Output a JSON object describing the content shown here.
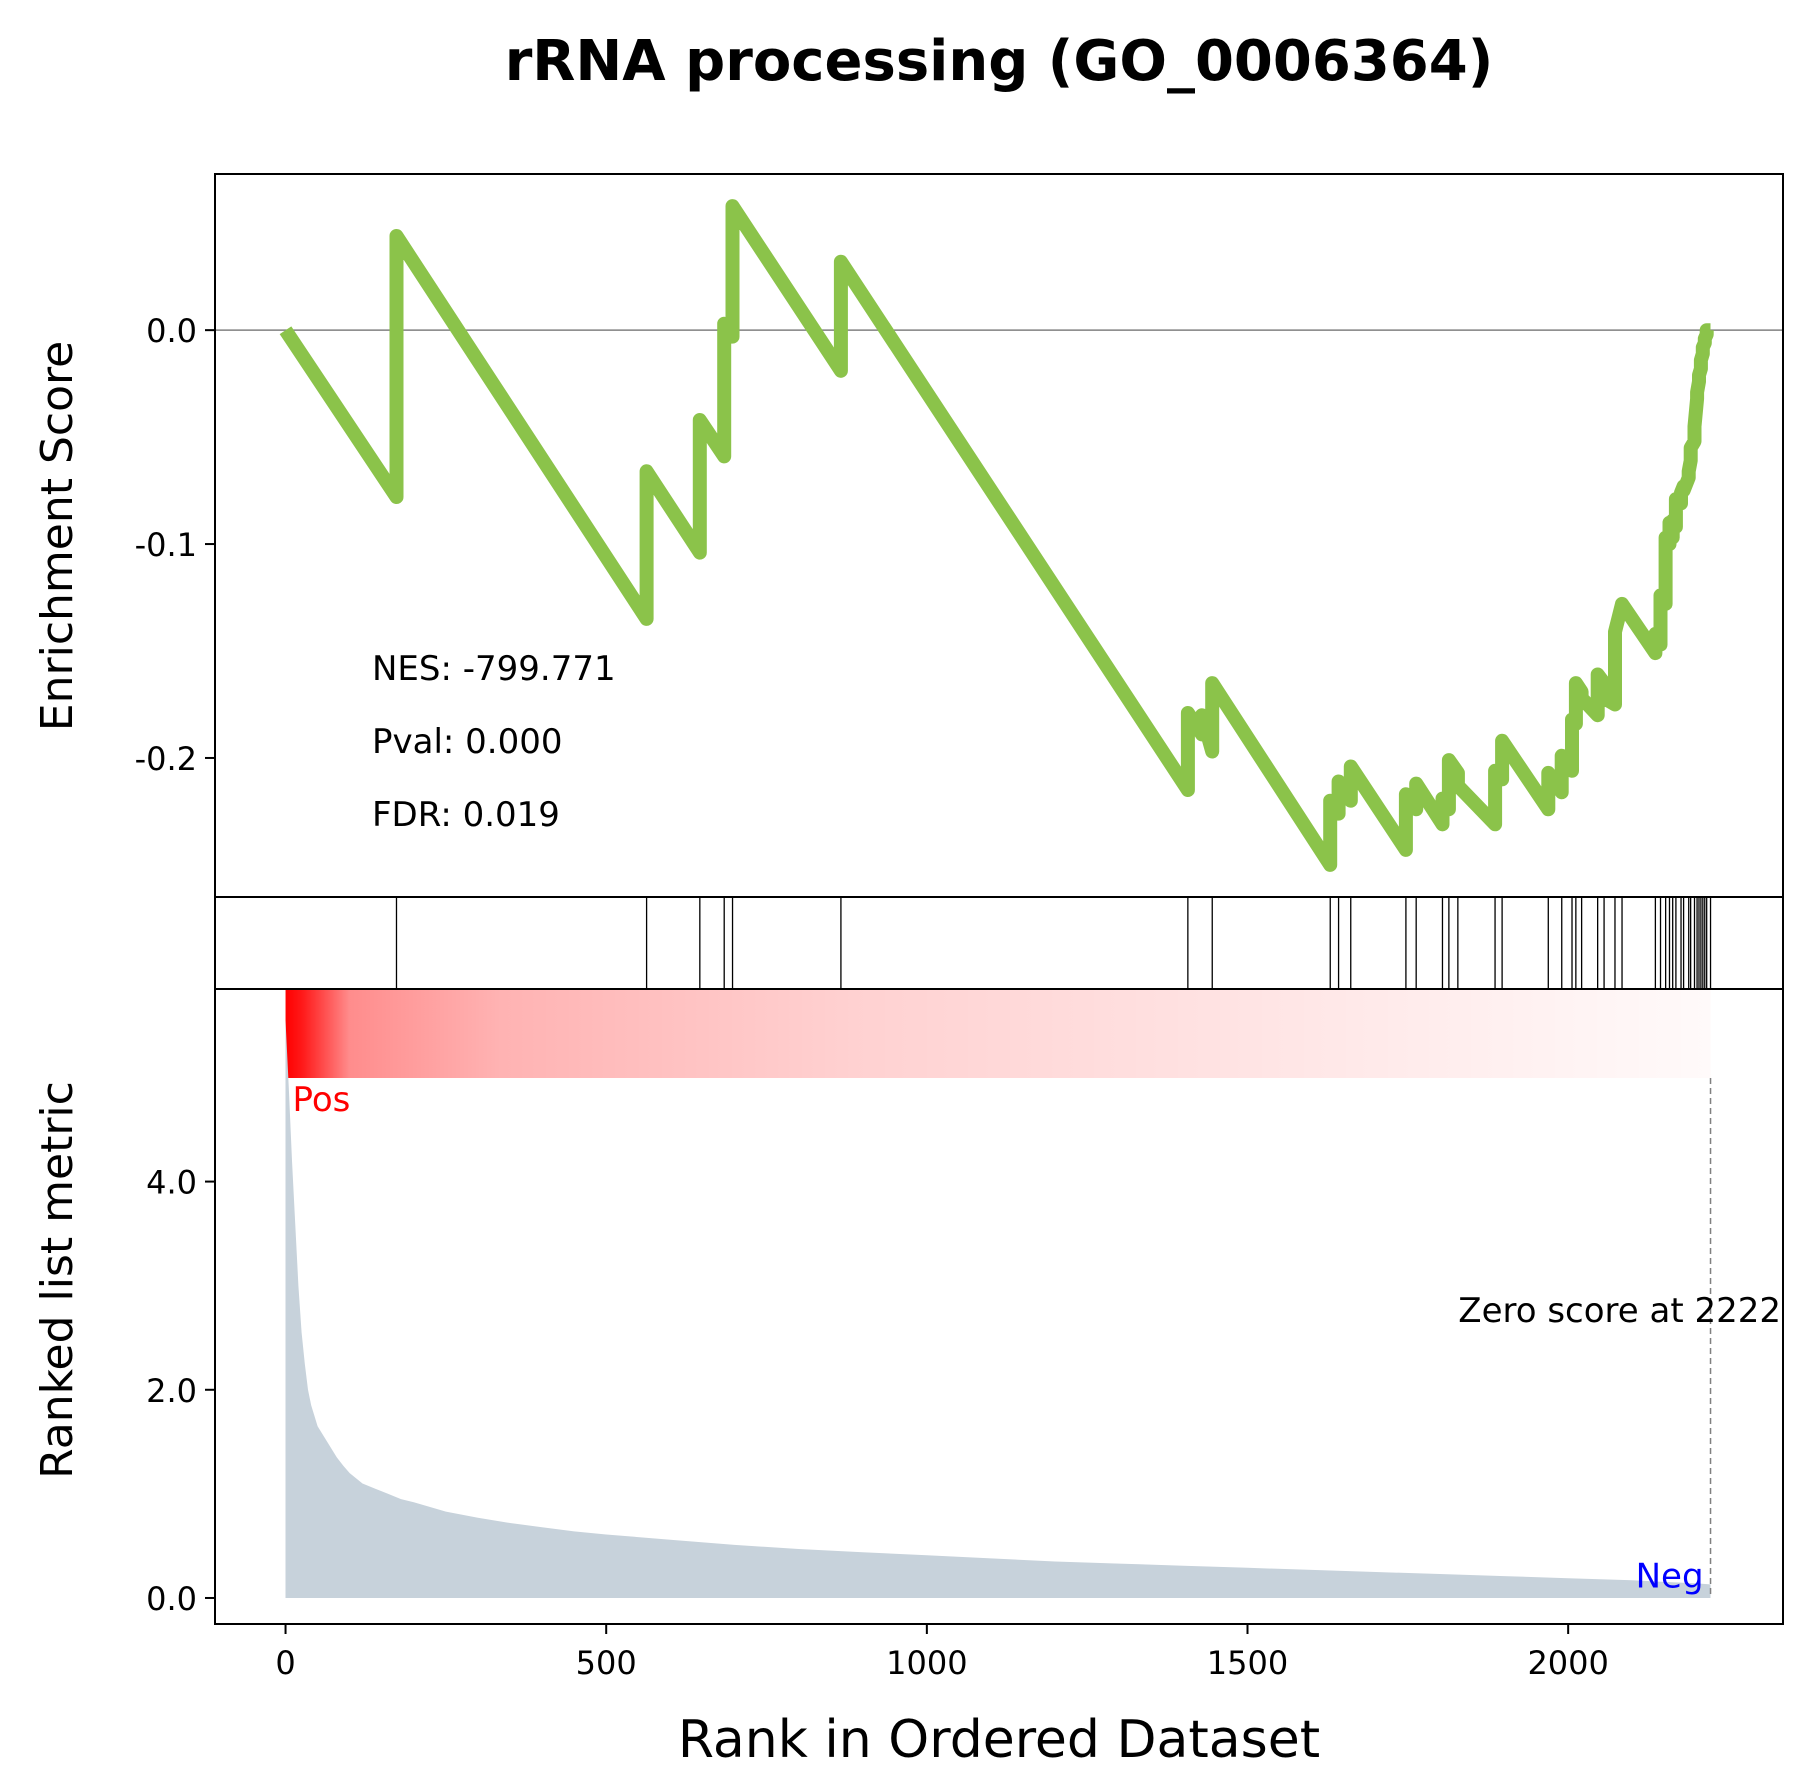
{
  "chart_data": {
    "type": "line",
    "title": "rRNA processing (GO_0006364)",
    "xlabel": "Rank in Ordered Dataset",
    "xlim": [
      -110,
      2335
    ],
    "x_ticks": [
      {
        "value": 0,
        "label": "0"
      },
      {
        "value": 500,
        "label": "500"
      },
      {
        "value": 1000,
        "label": "1000"
      },
      {
        "value": 1500,
        "label": "1500"
      },
      {
        "value": 2000,
        "label": "2000"
      }
    ],
    "es_panel": {
      "ylabel": "Enrichment Score",
      "ylim": [
        -0.265,
        0.073
      ],
      "y_ticks": [
        {
          "value": 0.0,
          "label": "0.0"
        },
        {
          "value": -0.1,
          "label": "-0.1"
        },
        {
          "value": -0.2,
          "label": "-0.2"
        }
      ],
      "zero_line": true,
      "line_color": "#8bc34a",
      "series": [
        {
          "x": [
            0,
            173,
            173,
            563,
            563,
            646,
            646,
            684,
            684,
            697,
            697,
            866,
            866,
            1407,
            1407,
            1429,
            1429,
            1445,
            1445,
            1629,
            1629,
            1642,
            1642,
            1661,
            1661,
            1747,
            1747,
            1763,
            1763,
            1804,
            1804,
            1814,
            1814,
            1828,
            1828,
            1886,
            1886,
            1897,
            1897,
            1969,
            1969,
            1990,
            1990,
            2006,
            2006,
            2012,
            2012,
            2021,
            2021,
            2046,
            2046,
            2056,
            2056,
            2073,
            2073,
            2084,
            2084,
            2136,
            2136,
            2144,
            2144,
            2152,
            2152,
            2158,
            2158,
            2163,
            2163,
            2168,
            2168,
            2176,
            2176,
            2180,
            2180,
            2188,
            2188,
            2191,
            2191,
            2197,
            2197,
            2201,
            2201,
            2204,
            2204,
            2207,
            2207,
            2210,
            2210,
            2213,
            2213,
            2216,
            2216,
            2222
          ],
          "y": [
            0.0,
            -0.078,
            0.044,
            -0.135,
            -0.066,
            -0.104,
            -0.042,
            -0.059,
            0.003,
            -0.003,
            0.058,
            -0.019,
            0.032,
            -0.215,
            -0.179,
            -0.189,
            -0.18,
            -0.197,
            -0.165,
            -0.25,
            -0.22,
            -0.226,
            -0.211,
            -0.22,
            -0.204,
            -0.243,
            -0.217,
            -0.224,
            -0.212,
            -0.231,
            -0.219,
            -0.224,
            -0.201,
            -0.207,
            -0.213,
            -0.231,
            -0.206,
            -0.21,
            -0.192,
            -0.224,
            -0.207,
            -0.216,
            -0.199,
            -0.206,
            -0.182,
            -0.184,
            -0.165,
            -0.169,
            -0.172,
            -0.18,
            -0.161,
            -0.165,
            -0.172,
            -0.175,
            -0.141,
            -0.128,
            -0.128,
            -0.151,
            -0.142,
            -0.147,
            -0.124,
            -0.128,
            -0.097,
            -0.1,
            -0.09,
            -0.097,
            -0.089,
            -0.092,
            -0.079,
            -0.081,
            -0.076,
            -0.073,
            -0.075,
            -0.069,
            -0.066,
            -0.061,
            -0.055,
            -0.052,
            -0.045,
            -0.032,
            -0.029,
            -0.024,
            -0.021,
            -0.018,
            -0.014,
            -0.011,
            -0.008,
            -0.006,
            -0.004,
            -0.002,
            0.0,
            0.0
          ]
        }
      ],
      "annotations": [
        {
          "label": "NES: -799.771"
        },
        {
          "label": "Pval: 0.000"
        },
        {
          "label": "FDR: 0.019"
        }
      ]
    },
    "hits_panel": {
      "hit_ranks": [
        173,
        563,
        646,
        684,
        697,
        866,
        1407,
        1445,
        1629,
        1642,
        1661,
        1747,
        1763,
        1804,
        1814,
        1828,
        1886,
        1897,
        1969,
        1990,
        2006,
        2012,
        2021,
        2046,
        2056,
        2073,
        2084,
        2136,
        2144,
        2152,
        2158,
        2163,
        2168,
        2176,
        2180,
        2188,
        2191,
        2197,
        2201,
        2204,
        2207,
        2210,
        2213,
        2216,
        2222
      ]
    },
    "rank_panel": {
      "ylabel": "Ranked list metric",
      "ylim": [
        -0.25,
        5.85
      ],
      "y_ticks": [
        {
          "value": 0.0,
          "label": "0.0"
        },
        {
          "value": 2.0,
          "label": "2.0"
        },
        {
          "value": 4.0,
          "label": "4.0"
        }
      ],
      "fill_color": "#c7d2db",
      "heatmap_color": "#ff0000",
      "series": [
        {
          "x": [
            0,
            5,
            10,
            15,
            20,
            25,
            30,
            35,
            40,
            45,
            50,
            60,
            70,
            80,
            90,
            100,
            120,
            140,
            160,
            180,
            200,
            250,
            300,
            350,
            400,
            450,
            500,
            600,
            700,
            800,
            900,
            1000,
            1100,
            1200,
            1300,
            1400,
            1500,
            1600,
            1700,
            1800,
            1900,
            2000,
            2100,
            2200,
            2222
          ],
          "y": [
            5.55,
            4.9,
            4.2,
            3.6,
            3.0,
            2.55,
            2.25,
            2.0,
            1.85,
            1.75,
            1.65,
            1.55,
            1.45,
            1.35,
            1.27,
            1.2,
            1.1,
            1.05,
            1.0,
            0.95,
            0.92,
            0.83,
            0.77,
            0.72,
            0.68,
            0.64,
            0.61,
            0.56,
            0.51,
            0.47,
            0.44,
            0.41,
            0.38,
            0.35,
            0.33,
            0.31,
            0.29,
            0.27,
            0.25,
            0.23,
            0.21,
            0.19,
            0.17,
            0.14,
            0.13
          ]
        }
      ],
      "zero_score": {
        "rank": 2222,
        "label": "Zero score at 2222"
      },
      "pos_label": "Pos",
      "neg_label": "Neg",
      "pos_color": "#ff0000",
      "neg_color": "#0000ff"
    }
  }
}
